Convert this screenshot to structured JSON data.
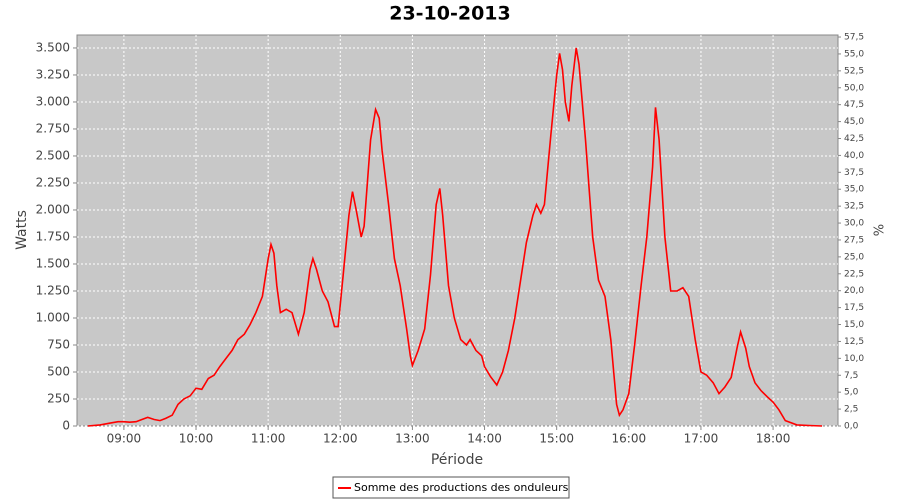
{
  "chart_data": {
    "type": "line",
    "title": "23-10-2013",
    "x_label": "Période",
    "y_label": "Watts",
    "y2_label": "%",
    "x": [
      8.5,
      8.67,
      8.83,
      8.92,
      9.0,
      9.08,
      9.17,
      9.25,
      9.33,
      9.42,
      9.5,
      9.58,
      9.67,
      9.75,
      9.83,
      9.92,
      10.0,
      10.08,
      10.17,
      10.25,
      10.33,
      10.42,
      10.5,
      10.58,
      10.67,
      10.75,
      10.83,
      10.92,
      11.0,
      11.04,
      11.08,
      11.12,
      11.17,
      11.25,
      11.33,
      11.42,
      11.5,
      11.58,
      11.62,
      11.67,
      11.75,
      11.83,
      11.92,
      11.97,
      12.04,
      12.12,
      12.17,
      12.22,
      12.29,
      12.33,
      12.42,
      12.49,
      12.54,
      12.58,
      12.67,
      12.75,
      12.83,
      12.92,
      12.97,
      13.0,
      13.08,
      13.17,
      13.25,
      13.33,
      13.38,
      13.42,
      13.5,
      13.58,
      13.67,
      13.75,
      13.8,
      13.88,
      13.96,
      14.0,
      14.08,
      14.17,
      14.25,
      14.33,
      14.42,
      14.5,
      14.58,
      14.67,
      14.72,
      14.78,
      14.83,
      14.92,
      15.0,
      15.04,
      15.08,
      15.12,
      15.17,
      15.21,
      15.27,
      15.31,
      15.4,
      15.5,
      15.58,
      15.67,
      15.75,
      15.83,
      15.87,
      15.92,
      16.0,
      16.08,
      16.17,
      16.25,
      16.33,
      16.37,
      16.42,
      16.5,
      16.58,
      16.67,
      16.75,
      16.83,
      16.92,
      17.0,
      17.08,
      17.17,
      17.25,
      17.33,
      17.42,
      17.5,
      17.55,
      17.62,
      17.67,
      17.75,
      17.83,
      17.92,
      18.0,
      18.08,
      18.17,
      18.25,
      18.33,
      18.5,
      18.68
    ],
    "series": [
      {
        "name": "Somme des productions des onduleurs",
        "color": "#ff0000",
        "values": [
          0,
          10,
          30,
          40,
          40,
          35,
          40,
          60,
          80,
          60,
          50,
          70,
          100,
          200,
          250,
          280,
          350,
          340,
          440,
          470,
          550,
          630,
          700,
          800,
          850,
          940,
          1050,
          1200,
          1550,
          1680,
          1600,
          1300,
          1050,
          1080,
          1050,
          850,
          1050,
          1450,
          1550,
          1450,
          1250,
          1150,
          920,
          920,
          1400,
          1950,
          2170,
          2000,
          1750,
          1850,
          2650,
          2930,
          2850,
          2550,
          2050,
          1550,
          1300,
          900,
          650,
          560,
          700,
          900,
          1400,
          2050,
          2200,
          1950,
          1300,
          1000,
          800,
          750,
          800,
          700,
          650,
          550,
          460,
          380,
          500,
          700,
          1000,
          1350,
          1700,
          1950,
          2050,
          1970,
          2050,
          2700,
          3250,
          3450,
          3300,
          3000,
          2820,
          3150,
          3500,
          3350,
          2650,
          1750,
          1350,
          1200,
          800,
          200,
          100,
          150,
          300,
          750,
          1300,
          1750,
          2400,
          2950,
          2650,
          1750,
          1250,
          1250,
          1280,
          1200,
          800,
          500,
          470,
          400,
          300,
          360,
          450,
          720,
          870,
          720,
          550,
          400,
          330,
          270,
          220,
          150,
          50,
          30,
          10,
          5,
          0
        ]
      }
    ],
    "xlim": [
      8.35,
      18.9
    ],
    "xticks": [
      {
        "value": 9,
        "label": "09:00"
      },
      {
        "value": 10,
        "label": "10:00"
      },
      {
        "value": 11,
        "label": "11:00"
      },
      {
        "value": 12,
        "label": "12:00"
      },
      {
        "value": 13,
        "label": "13:00"
      },
      {
        "value": 14,
        "label": "14:00"
      },
      {
        "value": 15,
        "label": "15:00"
      },
      {
        "value": 16,
        "label": "16:00"
      },
      {
        "value": 17,
        "label": "17:00"
      },
      {
        "value": 18,
        "label": "18:00"
      }
    ],
    "ylim": [
      0,
      3620
    ],
    "yticks": [
      0,
      250,
      500,
      750,
      {
        "value": 1000,
        "label": "1.000"
      },
      {
        "value": 1250,
        "label": "1.250"
      },
      {
        "value": 1500,
        "label": "1.500"
      },
      {
        "value": 1750,
        "label": "1.750"
      },
      {
        "value": 2000,
        "label": "2.000"
      },
      {
        "value": 2250,
        "label": "2.250"
      },
      {
        "value": 2500,
        "label": "2.500"
      },
      {
        "value": 2750,
        "label": "2.750"
      },
      {
        "value": 3000,
        "label": "3.000"
      },
      {
        "value": 3250,
        "label": "3.250"
      },
      {
        "value": 3500,
        "label": "3.500"
      }
    ],
    "y2lim": [
      0,
      57.8
    ],
    "y2ticks": [
      {
        "value": 0,
        "label": "0,0"
      },
      {
        "value": 2.5,
        "label": "2,5"
      },
      {
        "value": 5,
        "label": "5,0"
      },
      {
        "value": 7.5,
        "label": "7,5"
      },
      {
        "value": 10,
        "label": "10,0"
      },
      {
        "value": 12.5,
        "label": "12,5"
      },
      {
        "value": 15,
        "label": "15,0"
      },
      {
        "value": 17.5,
        "label": "17,5"
      },
      {
        "value": 20,
        "label": "20,0"
      },
      {
        "value": 22.5,
        "label": "22,5"
      },
      {
        "value": 25,
        "label": "25,0"
      },
      {
        "value": 27.5,
        "label": "27,5"
      },
      {
        "value": 30,
        "label": "30,0"
      },
      {
        "value": 32.5,
        "label": "32,5"
      },
      {
        "value": 35,
        "label": "35,0"
      },
      {
        "value": 37.5,
        "label": "37,5"
      },
      {
        "value": 40,
        "label": "40,0"
      },
      {
        "value": 42.5,
        "label": "42,5"
      },
      {
        "value": 45,
        "label": "45,0"
      },
      {
        "value": 47.5,
        "label": "47,5"
      },
      {
        "value": 50,
        "label": "50,0"
      },
      {
        "value": 52.5,
        "label": "52,5"
      },
      {
        "value": 55,
        "label": "55,0"
      },
      {
        "value": 57.5,
        "label": "57,5"
      }
    ],
    "grid": true,
    "legend": "bottom"
  }
}
